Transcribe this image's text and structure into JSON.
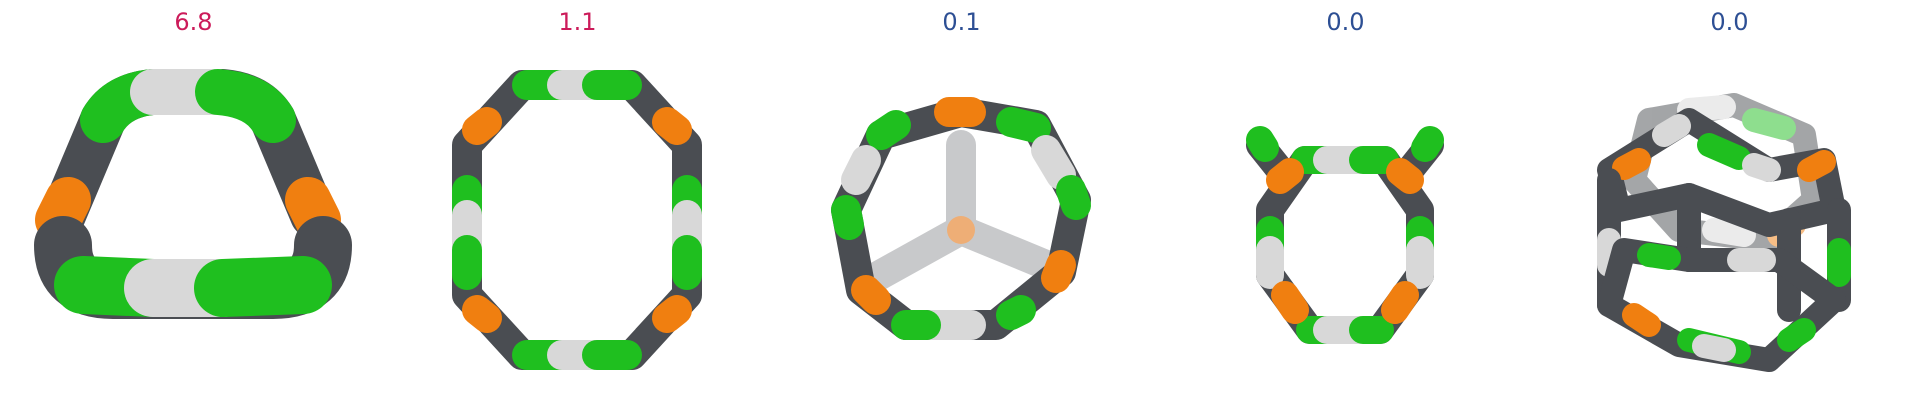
{
  "colors": {
    "green": "#1fbf1f",
    "white": "#d8d8d8",
    "dark": "#4a4d52",
    "orange": "#f07f10"
  },
  "panels": [
    {
      "label": "6.8",
      "label_color": "#cc1b5a",
      "shape": "flattened-ring-top-view"
    },
    {
      "label": "1.1",
      "label_color": "#cc1b5a",
      "shape": "elongated-octagon-ring"
    },
    {
      "label": "0.1",
      "label_color": "#2d4f94",
      "shape": "heptagon-cage-with-center"
    },
    {
      "label": "0.0",
      "label_color": "#2d4f94",
      "shape": "octagon-ring-with-arms"
    },
    {
      "label": "0.0",
      "label_color": "#2d4f94",
      "shape": "stacked-double-ring-cage"
    }
  ]
}
